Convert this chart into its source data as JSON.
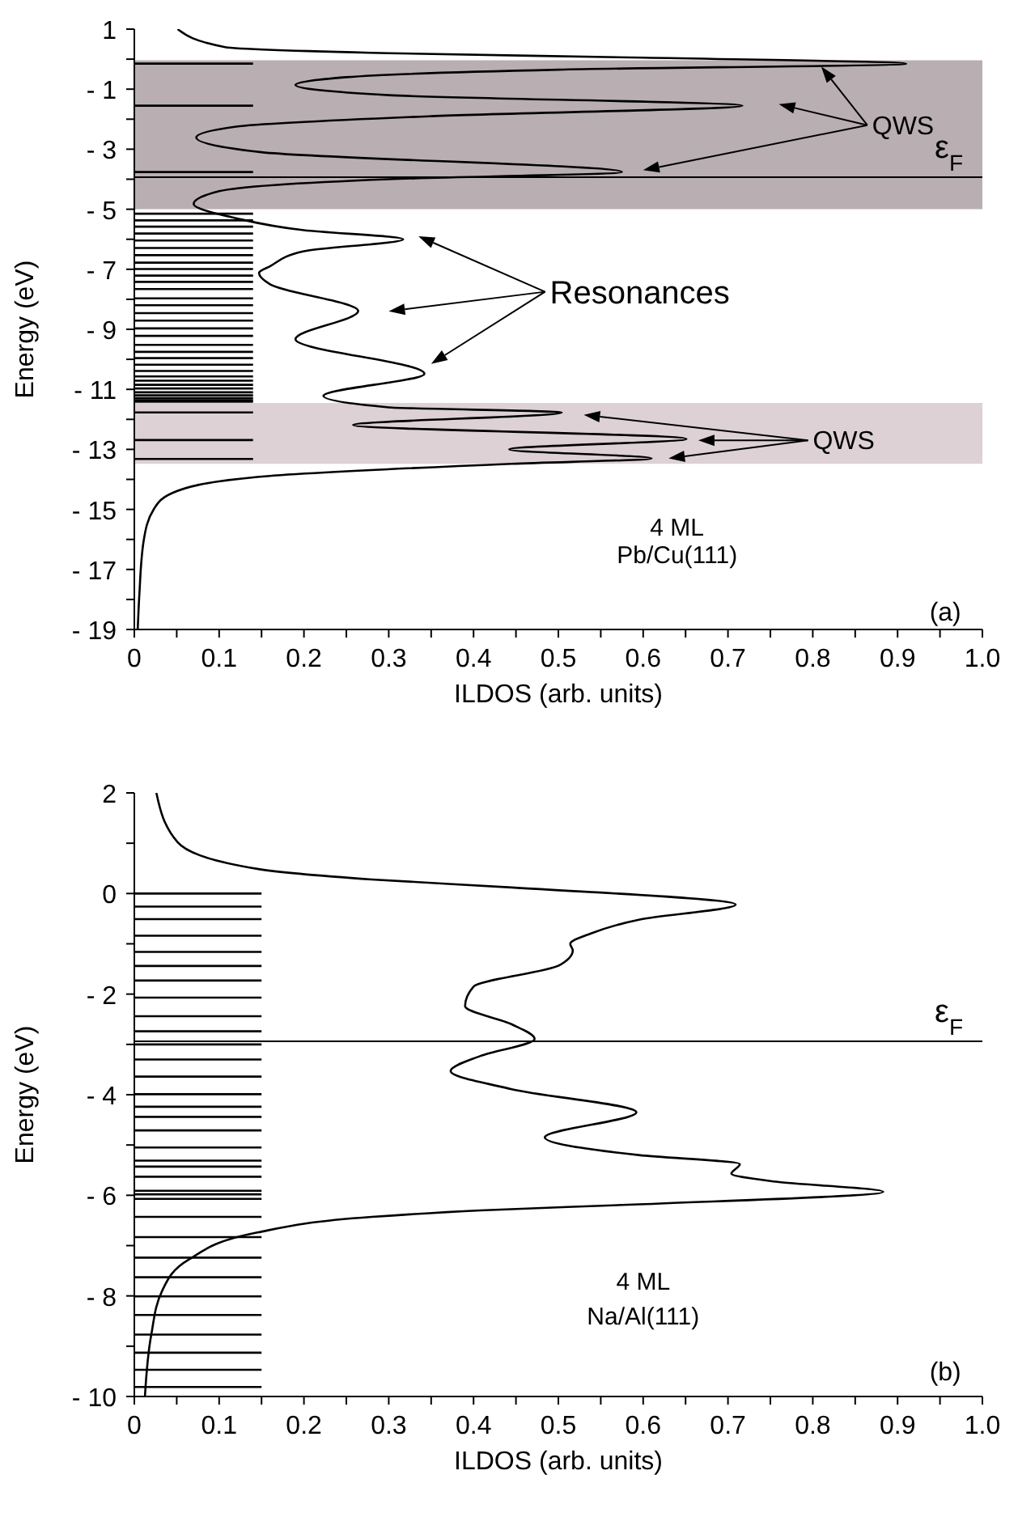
{
  "chart_data": [
    {
      "type": "line",
      "xlabel": "ILDOS (arb. units)",
      "ylabel": "Energy  (eV)",
      "xlim": [
        0,
        1
      ],
      "ylim": [
        -19,
        1
      ],
      "xticks": [
        0,
        {
          "value": 0.05,
          "label": null
        },
        0.1,
        {
          "value": 0.15,
          "label": null
        },
        0.2,
        {
          "value": 0.25,
          "label": null
        },
        0.3,
        {
          "value": 0.35,
          "label": null
        },
        0.4,
        {
          "value": 0.45,
          "label": null
        },
        0.5,
        {
          "value": 0.55,
          "label": null
        },
        0.6,
        {
          "value": 0.65,
          "label": null
        },
        0.7,
        {
          "value": 0.75,
          "label": null
        },
        0.8,
        {
          "value": 0.85,
          "label": null
        },
        0.9,
        {
          "value": 0.95,
          "label": null
        },
        {
          "value": 1,
          "label": "1.0"
        }
      ],
      "yticks": [
        1,
        {
          "value": 0,
          "label": null
        },
        {
          "value": -1,
          "label": "- 1"
        },
        {
          "value": -2,
          "label": null
        },
        {
          "value": -3,
          "label": "- 3"
        },
        {
          "value": -4,
          "label": null
        },
        {
          "value": -5,
          "label": "- 5"
        },
        {
          "value": -6,
          "label": null
        },
        {
          "value": -7,
          "label": "- 7"
        },
        {
          "value": -8,
          "label": null
        },
        {
          "value": -9,
          "label": "- 9"
        },
        {
          "value": -10,
          "label": null
        },
        {
          "value": -11,
          "label": "- 11"
        },
        {
          "value": -12,
          "label": null
        },
        {
          "value": -13,
          "label": "- 13"
        },
        {
          "value": -14,
          "label": null
        },
        {
          "value": -15,
          "label": "- 15"
        },
        {
          "value": -16,
          "label": null
        },
        {
          "value": -17,
          "label": "- 17"
        },
        {
          "value": -18,
          "label": null
        },
        {
          "value": -19,
          "label": "- 19"
        }
      ],
      "line_style": "solid",
      "bands": [
        {
          "axis": "y",
          "from": -0.04,
          "to": -5.0,
          "color": "#b9aeb2"
        },
        {
          "axis": "y",
          "from": -11.45,
          "to": -13.48,
          "color": "#ddd1d5"
        }
      ],
      "ref_lines": [
        {
          "axis": "y",
          "value": -3.93,
          "label": "ε$_{F}$"
        }
      ],
      "annotations": [
        "QWS",
        "Resonances",
        "QWS",
        "4 ML",
        "Pb/Cu(111)",
        "(a)"
      ],
      "series": [
        {
          "color": "#000000",
          "x": [
            0.051,
            0.107,
            0.3,
            0.6,
            0.91,
            0.5,
            0.25,
            0.19,
            0.3,
            0.717,
            0.35,
            0.12,
            0.073,
            0.15,
            0.575,
            0.3,
            0.1,
            0.07,
            0.12,
            0.2,
            0.317,
            0.2,
            0.16,
            0.147,
            0.16,
            0.264,
            0.19,
            0.342,
            0.223,
            0.3,
            0.504,
            0.258,
            0.651,
            0.442,
            0.61,
            0.445,
            0.145,
            0.045,
            0.023,
            0.011,
            0.006,
            0.004
          ],
          "values": [
            1,
            0.4,
            0.2,
            0.05,
            -0.15,
            -0.35,
            -0.6,
            -0.86,
            -1.2,
            -1.55,
            -1.9,
            -2.25,
            -2.61,
            -3.1,
            -3.76,
            -4.0,
            -4.4,
            -4.82,
            -5.3,
            -5.7,
            -6.0,
            -6.4,
            -6.9,
            -7.12,
            -7.5,
            -8.39,
            -9.33,
            -10.48,
            -11.22,
            -11.6,
            -11.77,
            -12.19,
            -12.65,
            -13.0,
            -13.3,
            -13.48,
            -13.92,
            -14.45,
            -14.99,
            -16.05,
            -17.8,
            -19
          ]
        },
        {
          "color": "#000000",
          "x": [
            0,
            0.14
          ],
          "values": [
            -0.15,
            -0.15
          ]
        },
        {
          "color": "#000000",
          "x": [
            0,
            0.14
          ],
          "values": [
            -1.55,
            -1.55
          ]
        },
        {
          "color": "#000000",
          "x": [
            0,
            0.14
          ],
          "values": [
            -3.76,
            -3.76
          ]
        },
        {
          "color": "#000000",
          "x": [
            0,
            0.14
          ],
          "values": [
            -5.15,
            -5.15
          ]
        },
        {
          "color": "#000000",
          "x": [
            0,
            0.14
          ],
          "values": [
            -5.37,
            -5.37
          ]
        },
        {
          "color": "#000000",
          "x": [
            0,
            0.14
          ],
          "values": [
            -5.58,
            -5.58
          ]
        },
        {
          "color": "#000000",
          "x": [
            0,
            0.14
          ],
          "values": [
            -5.81,
            -5.81
          ]
        },
        {
          "color": "#000000",
          "x": [
            0,
            0.14
          ],
          "values": [
            -6.04,
            -6.04
          ]
        },
        {
          "color": "#000000",
          "x": [
            0,
            0.14
          ],
          "values": [
            -6.29,
            -6.29
          ]
        },
        {
          "color": "#000000",
          "x": [
            0,
            0.14
          ],
          "values": [
            -6.53,
            -6.53
          ]
        },
        {
          "color": "#000000",
          "x": [
            0,
            0.14
          ],
          "values": [
            -6.78,
            -6.78
          ]
        },
        {
          "color": "#000000",
          "x": [
            0,
            0.14
          ],
          "values": [
            -6.99,
            -6.99
          ]
        },
        {
          "color": "#000000",
          "x": [
            0,
            0.14
          ],
          "values": [
            -7.21,
            -7.21
          ]
        },
        {
          "color": "#000000",
          "x": [
            0,
            0.14
          ],
          "values": [
            -7.42,
            -7.42
          ]
        },
        {
          "color": "#000000",
          "x": [
            0,
            0.14
          ],
          "values": [
            -7.66,
            -7.66
          ]
        },
        {
          "color": "#000000",
          "x": [
            0,
            0.14
          ],
          "values": [
            -7.97,
            -7.97
          ]
        },
        {
          "color": "#000000",
          "x": [
            0,
            0.14
          ],
          "values": [
            -8.2,
            -8.2
          ]
        },
        {
          "color": "#000000",
          "x": [
            0,
            0.14
          ],
          "values": [
            -8.46,
            -8.46
          ]
        },
        {
          "color": "#000000",
          "x": [
            0,
            0.14
          ],
          "values": [
            -8.71,
            -8.71
          ]
        },
        {
          "color": "#000000",
          "x": [
            0,
            0.14
          ],
          "values": [
            -8.97,
            -8.97
          ]
        },
        {
          "color": "#000000",
          "x": [
            0,
            0.14
          ],
          "values": [
            -9.22,
            -9.22
          ]
        },
        {
          "color": "#000000",
          "x": [
            0,
            0.14
          ],
          "values": [
            -9.52,
            -9.52
          ]
        },
        {
          "color": "#000000",
          "x": [
            0,
            0.14
          ],
          "values": [
            -9.75,
            -9.75
          ]
        },
        {
          "color": "#000000",
          "x": [
            0,
            0.14
          ],
          "values": [
            -9.96,
            -9.96
          ]
        },
        {
          "color": "#000000",
          "x": [
            0,
            0.14
          ],
          "values": [
            -10.18,
            -10.18
          ]
        },
        {
          "color": "#000000",
          "x": [
            0,
            0.14
          ],
          "values": [
            -10.39,
            -10.39
          ]
        },
        {
          "color": "#000000",
          "x": [
            0,
            0.14
          ],
          "values": [
            -10.57,
            -10.57
          ]
        },
        {
          "color": "#000000",
          "x": [
            0,
            0.14
          ],
          "values": [
            -10.71,
            -10.71
          ]
        },
        {
          "color": "#000000",
          "x": [
            0,
            0.14
          ],
          "values": [
            -10.85,
            -10.85
          ]
        },
        {
          "color": "#000000",
          "x": [
            0,
            0.14
          ],
          "values": [
            -10.97,
            -10.97
          ]
        },
        {
          "color": "#000000",
          "x": [
            0,
            0.14
          ],
          "values": [
            -11.1,
            -11.1
          ]
        },
        {
          "color": "#000000",
          "x": [
            0,
            0.14
          ],
          "values": [
            -11.2,
            -11.2
          ]
        },
        {
          "color": "#000000",
          "x": [
            0,
            0.14
          ],
          "values": [
            -11.29,
            -11.29
          ]
        },
        {
          "color": "#000000",
          "x": [
            0,
            0.14
          ],
          "values": [
            -11.36,
            -11.36
          ]
        },
        {
          "color": "#000000",
          "x": [
            0,
            0.14
          ],
          "values": [
            -11.41,
            -11.41
          ]
        },
        {
          "color": "#000000",
          "x": [
            0,
            0.14
          ],
          "values": [
            -11.77,
            -11.77
          ]
        },
        {
          "color": "#000000",
          "x": [
            0,
            0.14
          ],
          "values": [
            -12.69,
            -12.69
          ]
        },
        {
          "color": "#000000",
          "x": [
            0,
            0.14
          ],
          "values": [
            -13.32,
            -13.32
          ]
        }
      ]
    },
    {
      "type": "line",
      "xlabel": "ILDOS (arb. units)",
      "ylabel": "Energy  (eV)",
      "xlim": [
        0,
        1
      ],
      "ylim": [
        -10,
        2
      ],
      "xticks": [
        0,
        {
          "value": 0.05,
          "label": null
        },
        0.1,
        {
          "value": 0.15,
          "label": null
        },
        0.2,
        {
          "value": 0.25,
          "label": null
        },
        0.3,
        {
          "value": 0.35,
          "label": null
        },
        0.4,
        {
          "value": 0.45,
          "label": null
        },
        0.5,
        {
          "value": 0.55,
          "label": null
        },
        0.6,
        {
          "value": 0.65,
          "label": null
        },
        0.7,
        {
          "value": 0.75,
          "label": null
        },
        0.8,
        {
          "value": 0.85,
          "label": null
        },
        0.9,
        {
          "value": 0.95,
          "label": null
        },
        {
          "value": 1,
          "label": "1.0"
        }
      ],
      "yticks": [
        2,
        {
          "value": 1,
          "label": null
        },
        0,
        {
          "value": -1,
          "label": null
        },
        {
          "value": -2,
          "label": "- 2"
        },
        {
          "value": -3,
          "label": null
        },
        {
          "value": -4,
          "label": "- 4"
        },
        {
          "value": -5,
          "label": null
        },
        {
          "value": -6,
          "label": "- 6"
        },
        {
          "value": -7,
          "label": null
        },
        {
          "value": -8,
          "label": "- 8"
        },
        {
          "value": -9,
          "label": null
        },
        {
          "value": -10,
          "label": "- 10"
        }
      ],
      "line_style": "solid",
      "ref_lines": [
        {
          "axis": "y",
          "value": -2.94,
          "label": "ε$_{F}$"
        }
      ],
      "annotations": [
        "4 ML",
        "Na/Al(111)",
        "(b)"
      ],
      "series": [
        {
          "color": "#000000",
          "x": [
            0.026,
            0.051,
            0.145,
            0.28,
            0.445,
            0.709,
            0.595,
            0.539,
            0.514,
            0.517,
            0.501,
            0.4,
            0.39,
            0.445,
            0.472,
            0.408,
            0.373,
            0.445,
            0.592,
            0.484,
            0.595,
            0.714,
            0.704,
            0.757,
            0.883,
            0.595,
            0.408,
            0.28,
            0.145,
            0.064,
            0.0325,
            0.02,
            0.0125
          ],
          "values": [
            2,
            1.02,
            0.49,
            0.28,
            0.12,
            -0.22,
            -0.52,
            -0.79,
            -1.0,
            -1.13,
            -1.43,
            -1.85,
            -2.24,
            -2.6,
            -2.89,
            -3.23,
            -3.53,
            -3.89,
            -4.35,
            -4.85,
            -5.2,
            -5.38,
            -5.57,
            -5.73,
            -5.93,
            -6.18,
            -6.3,
            -6.43,
            -6.74,
            -7.28,
            -7.91,
            -8.77,
            -10
          ]
        },
        {
          "color": "#000000",
          "x": [
            0,
            0.15
          ],
          "values": [
            0,
            0
          ]
        },
        {
          "color": "#000000",
          "x": [
            0,
            0.15
          ],
          "values": [
            -0.26,
            -0.26
          ]
        },
        {
          "color": "#000000",
          "x": [
            0,
            0.15
          ],
          "values": [
            -0.51,
            -0.51
          ]
        },
        {
          "color": "#000000",
          "x": [
            0,
            0.15
          ],
          "values": [
            -0.84,
            -0.84
          ]
        },
        {
          "color": "#000000",
          "x": [
            0,
            0.15
          ],
          "values": [
            -1.16,
            -1.16
          ]
        },
        {
          "color": "#000000",
          "x": [
            0,
            0.15
          ],
          "values": [
            -1.44,
            -1.44
          ]
        },
        {
          "color": "#000000",
          "x": [
            0,
            0.15
          ],
          "values": [
            -1.73,
            -1.73
          ]
        },
        {
          "color": "#000000",
          "x": [
            0,
            0.15
          ],
          "values": [
            -2.07,
            -2.07
          ]
        },
        {
          "color": "#000000",
          "x": [
            0,
            0.15
          ],
          "values": [
            -2.44,
            -2.44
          ]
        },
        {
          "color": "#000000",
          "x": [
            0,
            0.15
          ],
          "values": [
            -2.74,
            -2.74
          ]
        },
        {
          "color": "#000000",
          "x": [
            0,
            0.15
          ],
          "values": [
            -3.0,
            -3.0
          ]
        },
        {
          "color": "#000000",
          "x": [
            0,
            0.15
          ],
          "values": [
            -3.3,
            -3.3
          ]
        },
        {
          "color": "#000000",
          "x": [
            0,
            0.15
          ],
          "values": [
            -3.64,
            -3.64
          ]
        },
        {
          "color": "#000000",
          "x": [
            0,
            0.15
          ],
          "values": [
            -3.99,
            -3.99
          ]
        },
        {
          "color": "#000000",
          "x": [
            0,
            0.15
          ],
          "values": [
            -4.24,
            -4.24
          ]
        },
        {
          "color": "#000000",
          "x": [
            0,
            0.15
          ],
          "values": [
            -4.44,
            -4.44
          ]
        },
        {
          "color": "#000000",
          "x": [
            0,
            0.15
          ],
          "values": [
            -4.71,
            -4.71
          ]
        },
        {
          "color": "#000000",
          "x": [
            0,
            0.15
          ],
          "values": [
            -5.05,
            -5.05
          ]
        },
        {
          "color": "#000000",
          "x": [
            0,
            0.15
          ],
          "values": [
            -5.31,
            -5.31
          ]
        },
        {
          "color": "#000000",
          "x": [
            0,
            0.15
          ],
          "values": [
            -5.43,
            -5.43
          ]
        },
        {
          "color": "#000000",
          "x": [
            0,
            0.15
          ],
          "values": [
            -5.63,
            -5.63
          ]
        },
        {
          "color": "#000000",
          "x": [
            0,
            0.15
          ],
          "values": [
            -5.91,
            -5.91
          ]
        },
        {
          "color": "#000000",
          "x": [
            0,
            0.15
          ],
          "values": [
            -5.98,
            -5.98
          ]
        },
        {
          "color": "#000000",
          "x": [
            0,
            0.15
          ],
          "values": [
            -6.07,
            -6.07
          ]
        },
        {
          "color": "#000000",
          "x": [
            0,
            0.15
          ],
          "values": [
            -6.43,
            -6.43
          ]
        },
        {
          "color": "#000000",
          "x": [
            0,
            0.15
          ],
          "values": [
            -6.83,
            -6.83
          ]
        },
        {
          "color": "#000000",
          "x": [
            0,
            0.15
          ],
          "values": [
            -7.24,
            -7.24
          ]
        },
        {
          "color": "#000000",
          "x": [
            0,
            0.15
          ],
          "values": [
            -7.63,
            -7.63
          ]
        },
        {
          "color": "#000000",
          "x": [
            0,
            0.15
          ],
          "values": [
            -8.01,
            -8.01
          ]
        },
        {
          "color": "#000000",
          "x": [
            0,
            0.15
          ],
          "values": [
            -8.38,
            -8.38
          ]
        },
        {
          "color": "#000000",
          "x": [
            0,
            0.15
          ],
          "values": [
            -8.77,
            -8.77
          ]
        },
        {
          "color": "#000000",
          "x": [
            0,
            0.15
          ],
          "values": [
            -9.13,
            -9.13
          ]
        },
        {
          "color": "#000000",
          "x": [
            0,
            0.15
          ],
          "values": [
            -9.47,
            -9.47
          ]
        },
        {
          "color": "#000000",
          "x": [
            0,
            0.15
          ],
          "values": [
            -9.81,
            -9.81
          ]
        }
      ]
    }
  ]
}
